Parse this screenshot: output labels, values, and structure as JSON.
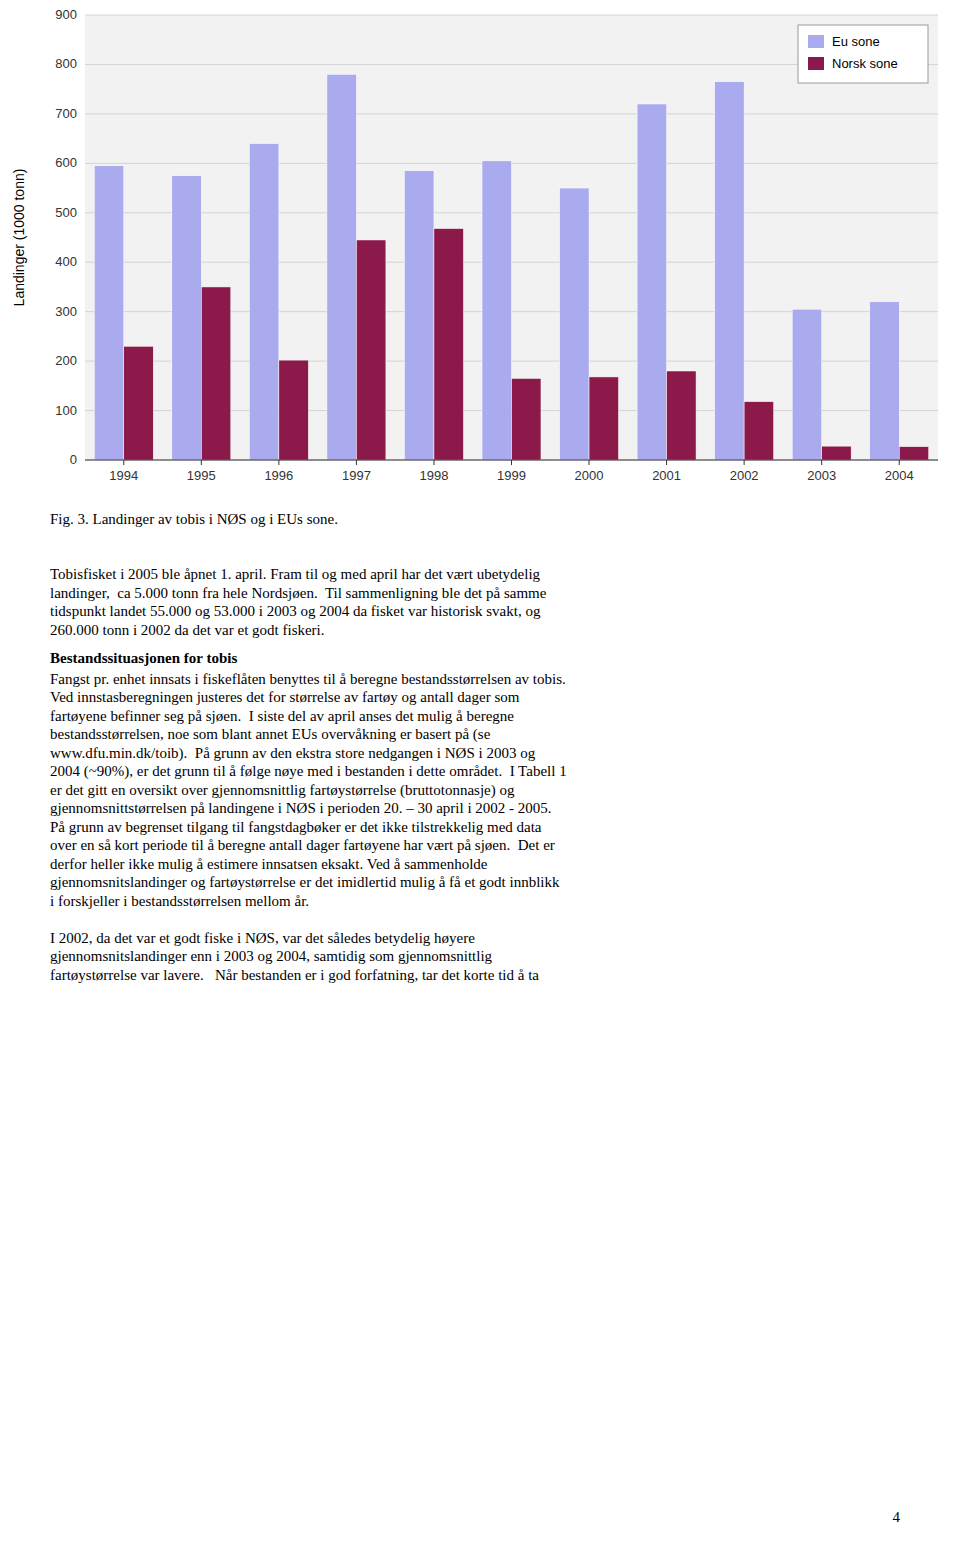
{
  "chart_data": {
    "type": "bar",
    "categories": [
      "1994",
      "1995",
      "1996",
      "1997",
      "1998",
      "1999",
      "2000",
      "2001",
      "2002",
      "2003",
      "2004"
    ],
    "series": [
      {
        "name": "Eu sone",
        "color": "#aaaaee",
        "values": [
          595,
          575,
          640,
          780,
          585,
          605,
          550,
          720,
          765,
          305,
          320
        ]
      },
      {
        "name": "Norsk sone",
        "color": "#8b1a4a",
        "values": [
          230,
          350,
          202,
          445,
          468,
          165,
          168,
          180,
          118,
          28,
          27
        ]
      }
    ],
    "ylabel": "Landinger (1000 tonn)",
    "ylim": [
      0,
      900
    ],
    "yticks": [
      0,
      100,
      200,
      300,
      400,
      500,
      600,
      700,
      800,
      900
    ],
    "grid": true,
    "legend": "upper right"
  },
  "fig_caption": "Fig. 3. Landinger av tobis i NØS og i EUs sone.",
  "para1_lines": [
    "Tobisfisket i 2005 ble åpnet 1. april. Fram til og med april har det vært ubetydelig",
    "landinger,  ca 5.000 tonn fra hele Nordsjøen.  Til sammenligning ble det på samme",
    "tidspunkt landet 55.000 og 53.000 i 2003 og 2004 da fisket var historisk svakt, og",
    "260.000 tonn i 2002 da det var et godt fiskeri."
  ],
  "heading2": "Bestandssituasjonen for tobis",
  "para2_lines": [
    "Fangst pr. enhet innsats i fiskeflåten benyttes til å beregne bestandsstørrelsen av tobis.",
    "Ved innstasberegningen justeres det for størrelse av fartøy og antall dager som",
    "fartøyene befinner seg på sjøen.  I siste del av april anses det mulig å beregne",
    "bestandsstørrelsen, noe som blant annet EUs overvåkning er basert på (se",
    "www.dfu.min.dk/toib).  På grunn av den ekstra store nedgangen i NØS i 2003 og",
    "2004 (~90%), er det grunn til å følge nøye med i bestanden i dette området.  I Tabell 1",
    "er det gitt en oversikt over gjennomsnittlig fartøystørrelse (bruttotonnasje) og",
    "gjennomsnittstørrelsen på landingene i NØS i perioden 20. – 30 april i 2002 - 2005.",
    "På grunn av begrenset tilgang til fangstdagbøker er det ikke tilstrekkelig med data",
    "over en så kort periode til å beregne antall dager fartøyene har vært på sjøen.  Det er",
    "derfor heller ikke mulig å estimere innsatsen eksakt. Ved å sammenholde",
    "gjennomsnitslandinger og fartøystørrelse er det imidlertid mulig å få et godt innblikk",
    "i forskjeller i bestandsstørrelsen mellom år."
  ],
  "para3_lines": [
    "I 2002, da det var et godt fiske i NØS, var det således betydelig høyere",
    "gjennomsnitslandinger enn i 2003 og 2004, samtidig som gjennomsnittlig",
    "fartøystørrelse var lavere.   Når bestanden er i god forfatning, tar det korte tid å ta"
  ],
  "page_number": "4"
}
